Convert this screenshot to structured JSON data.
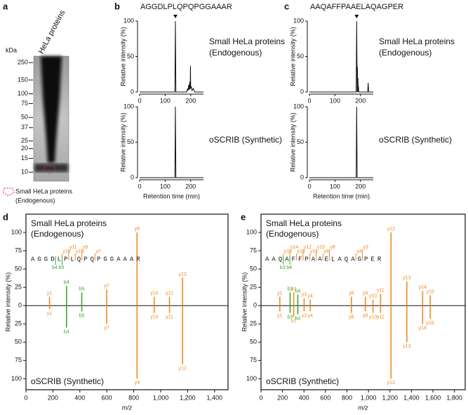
{
  "chart_data": [
    {
      "type": "gel",
      "panel": "a",
      "title": "HeLa proteins",
      "y_label": "kDa",
      "yticks": [
        250,
        150,
        100,
        75,
        50,
        37,
        25,
        20,
        15,
        10
      ],
      "ylim": [
        8,
        290
      ],
      "log_scale": true,
      "legend": [
        "Small HeLa proteins",
        "(Endogenous)"
      ],
      "highlight_color": "#e0303a"
    },
    {
      "type": "chromatogram",
      "panel": "b",
      "title": "AGGDLPLQPQPGGAAAR",
      "x_label": "Retention time (min)",
      "y_label": "Relative intensity (%)",
      "xlim": [
        0,
        250
      ],
      "xticks": [
        0,
        100,
        200
      ],
      "ylim": [
        0,
        100
      ],
      "yticks": [
        0,
        50,
        100
      ],
      "color": "#111111",
      "subplots": [
        {
          "name": [
            "Small HeLa proteins",
            "(Endogenous)"
          ],
          "x": [
            0,
            138,
            140,
            142,
            185,
            188,
            190,
            192,
            194,
            196,
            198,
            199,
            200,
            202,
            205,
            210,
            215,
            250
          ],
          "values": [
            0,
            0,
            100,
            0,
            0,
            5,
            2,
            10,
            3,
            14,
            4,
            37,
            5,
            8,
            2,
            5,
            0,
            0
          ]
        },
        {
          "name": [
            "oSCRIB (Synthetic)"
          ],
          "x": [
            0,
            138,
            140,
            142,
            250
          ],
          "values": [
            0,
            0,
            100,
            0,
            0
          ]
        }
      ]
    },
    {
      "type": "chromatogram",
      "panel": "c",
      "title": "AAQAFFPAAELAQAGPER",
      "x_label": "Retention time (min)",
      "y_label": "Relative intensity (%)",
      "xlim": [
        0,
        250
      ],
      "xticks": [
        0,
        100,
        200
      ],
      "ylim": [
        0,
        100
      ],
      "yticks": [
        0,
        50,
        100
      ],
      "color": "#111111",
      "subplots": [
        {
          "name": [
            "Small HeLa proteins",
            "(Endogenous)"
          ],
          "x": [
            0,
            183,
            185,
            187,
            188,
            189,
            190,
            191,
            192,
            193,
            228,
            230,
            232,
            250
          ],
          "values": [
            0,
            0,
            100,
            0,
            35,
            0,
            20,
            0,
            8,
            0,
            0,
            13,
            0,
            0
          ]
        },
        {
          "name": [
            "oSCRIB (Synthetic)"
          ],
          "x": [
            0,
            183,
            185,
            187,
            250
          ],
          "values": [
            0,
            0,
            100,
            0,
            0
          ]
        }
      ]
    },
    {
      "type": "mirror",
      "panel": "d",
      "x_label": "m/z",
      "y_label": "Relative intensity (%)",
      "xlim": [
        0,
        1500
      ],
      "xticks": [
        0,
        200,
        400,
        600,
        800,
        {
          "value": 1000,
          "label": "1,000"
        },
        {
          "value": 1200,
          "label": "1,200"
        },
        {
          "value": 1400,
          "label": "1,400"
        }
      ],
      "ylim": [
        -115,
        125
      ],
      "yticks": [
        {
          "value": -100,
          "label": "100"
        },
        {
          "value": -75,
          "label": "75"
        },
        {
          "value": -50,
          "label": "50"
        },
        {
          "value": -25,
          "label": "25"
        },
        0,
        25,
        50,
        75,
        100
      ],
      "ion_colors": {
        "y": "#f08a24",
        "b": "#3aa935"
      },
      "sequence": "AGGDLPLQPQPGGAAAR",
      "sequence_labels_top": [
        "y12",
        "y11",
        "y10",
        "y9",
        "y7"
      ],
      "sequence_labels_bottom": [
        "b4",
        "b5"
      ],
      "x": [
        175.1,
        301.1,
        414.2,
        599.3,
        824.4,
        952.5,
        1065.6,
        1162.6
      ],
      "labels": [
        "y1",
        "b4",
        "b5",
        "y7",
        "y9",
        "y10",
        "y11",
        "y12"
      ],
      "series": [
        {
          "name": [
            "Small HeLa proteins",
            "(Endogenous)"
          ],
          "values": [
            12,
            27,
            18,
            22,
            100,
            12,
            12,
            38
          ]
        },
        {
          "name": [
            "oSCRIB (Synthetic)"
          ],
          "values": [
            -5,
            -30,
            -8,
            -25,
            -100,
            -10,
            -10,
            -80
          ]
        }
      ]
    },
    {
      "type": "mirror",
      "panel": "e",
      "x_label": "m/z",
      "y_label": "Relative intensity (%)",
      "xlim": [
        0,
        1900
      ],
      "xticks": [
        0,
        200,
        400,
        600,
        800,
        {
          "value": 1000,
          "label": "1,000"
        },
        {
          "value": 1200,
          "label": "1,200"
        },
        {
          "value": 1400,
          "label": "1,400"
        },
        {
          "value": 1600,
          "label": "1,600"
        },
        {
          "value": 1800,
          "label": "1,800"
        }
      ],
      "ylim": [
        -115,
        125
      ],
      "yticks": [
        {
          "value": -100,
          "label": "100"
        },
        {
          "value": -75,
          "label": "75"
        },
        {
          "value": -50,
          "label": "50"
        },
        {
          "value": -25,
          "label": "25"
        },
        0,
        25,
        50,
        75,
        100
      ],
      "ion_colors": {
        "y": "#f08a24",
        "b": "#3aa935"
      },
      "sequence": "AAQAFFPAAELAQAGPER",
      "sequence_labels_top": [
        "y15",
        "y14",
        "y13",
        "y12",
        "y11",
        "y10",
        "y9",
        "y8",
        "y4",
        "y3"
      ],
      "sequence_labels_bottom": [
        "b3",
        "b4"
      ],
      "x": [
        175.1,
        271.1,
        304.2,
        342.2,
        401.2,
        458.2,
        841.5,
        970.5,
        1041.5,
        1112.6,
        1209.6,
        1356.7,
        1503.8,
        1574.8
      ],
      "labels": [
        "y1",
        "b3",
        "y2",
        "b4",
        "y3",
        "y4",
        "y8",
        "y9",
        "y10",
        "y11",
        "y12",
        "y13",
        "y14",
        "y15"
      ],
      "series": [
        {
          "name": [
            "Small HeLa proteins",
            "(Endogenous)"
          ],
          "values": [
            12,
            18,
            18,
            15,
            10,
            8,
            12,
            12,
            8,
            16,
            100,
            33,
            20,
            14
          ]
        },
        {
          "name": [
            "oSCRIB (Synthetic)"
          ],
          "values": [
            -8,
            -10,
            -15,
            -12,
            -8,
            -8,
            -10,
            -8,
            -10,
            -10,
            -100,
            -50,
            -25,
            -18
          ]
        }
      ]
    }
  ]
}
